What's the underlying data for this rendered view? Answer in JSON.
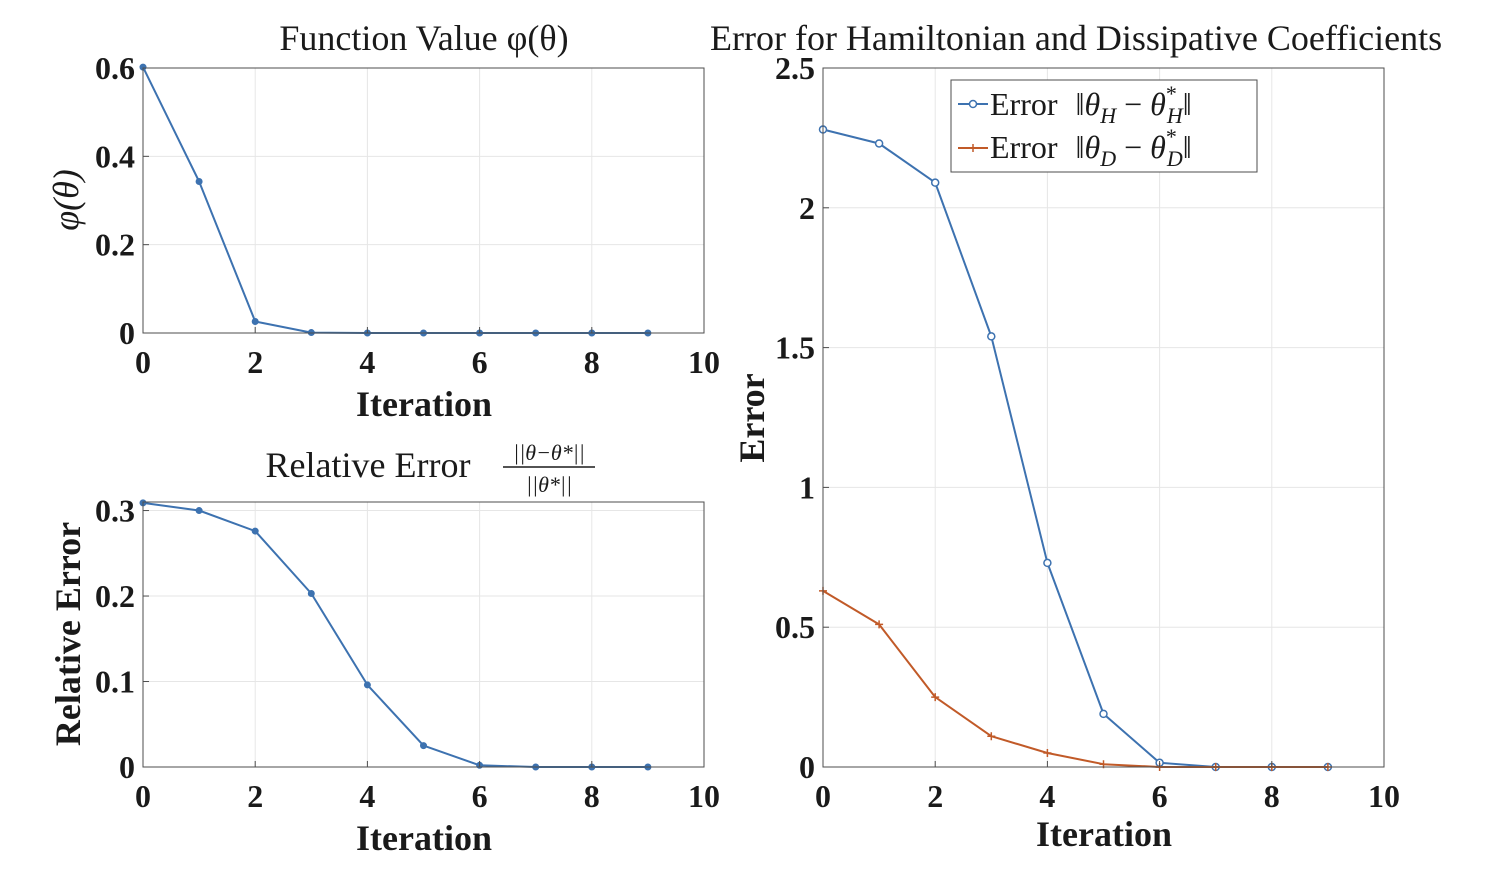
{
  "chart_data": [
    {
      "type": "line",
      "title": "Function Value φ(θ)",
      "xlabel": "Iteration",
      "ylabel": "φ(θ)",
      "xlim": [
        0,
        10
      ],
      "ylim": [
        0,
        0.6
      ],
      "xticks": [
        "0",
        "2",
        "4",
        "6",
        "8",
        "10"
      ],
      "yticks": [
        "0",
        "0.2",
        "0.4",
        "0.6"
      ],
      "grid": true,
      "series": [
        {
          "color": "#3d72b0",
          "marker": "dot",
          "x": [
            0,
            1,
            2,
            3,
            4,
            5,
            6,
            7,
            8,
            9
          ],
          "y": [
            0.602,
            0.343,
            0.026,
            0.001,
            0.0,
            0.0,
            0.0,
            0.0,
            0.0,
            0.0
          ]
        }
      ]
    },
    {
      "type": "line",
      "title": "Relative Error",
      "title_fraction": {
        "numerator": "||θ−θ*||",
        "denominator": "||θ*||"
      },
      "xlabel": "Iteration",
      "ylabel": "Relative Error",
      "xlim": [
        0,
        10
      ],
      "ylim": [
        0,
        0.31
      ],
      "xticks": [
        "0",
        "2",
        "4",
        "6",
        "8",
        "10"
      ],
      "yticks": [
        "0",
        "0.1",
        "0.2",
        "0.3"
      ],
      "grid": true,
      "series": [
        {
          "color": "#3d72b0",
          "marker": "dot",
          "x": [
            0,
            1,
            2,
            3,
            4,
            5,
            6,
            7,
            8,
            9
          ],
          "y": [
            0.309,
            0.3,
            0.276,
            0.203,
            0.096,
            0.025,
            0.002,
            0.0,
            0.0,
            0.0
          ]
        }
      ]
    },
    {
      "type": "line",
      "title": "Error for Hamiltonian and Dissipative Coefficients",
      "xlabel": "Iteration",
      "ylabel": "Error",
      "xlim": [
        0,
        10
      ],
      "ylim": [
        0,
        2.5
      ],
      "xticks": [
        "0",
        "2",
        "4",
        "6",
        "8",
        "10"
      ],
      "yticks": [
        "0",
        "0.5",
        "1",
        "1.5",
        "2",
        "2.5"
      ],
      "grid": true,
      "legend_position": "top-center",
      "series": [
        {
          "name": "Error ||θH − θ*H||",
          "legend_word": "Error",
          "color": "#3d72b0",
          "marker": "circle",
          "x": [
            0,
            1,
            2,
            3,
            4,
            5,
            6,
            7,
            8,
            9
          ],
          "y": [
            2.28,
            2.23,
            2.09,
            1.54,
            0.73,
            0.19,
            0.015,
            0.0,
            0.0,
            0.0
          ]
        },
        {
          "name": "Error ||θD − θ*D||",
          "legend_word": "Error",
          "color": "#c15a28",
          "marker": "plus",
          "x": [
            0,
            1,
            2,
            3,
            4,
            5,
            6,
            7,
            8,
            9
          ],
          "y": [
            0.63,
            0.51,
            0.25,
            0.11,
            0.05,
            0.01,
            0.0,
            0.0,
            0.0,
            0.0
          ]
        }
      ]
    }
  ]
}
